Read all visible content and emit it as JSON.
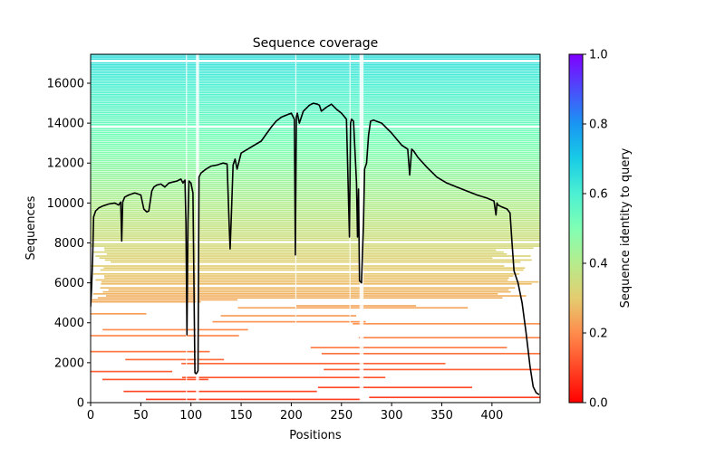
{
  "chart_data": {
    "type": "heatmap",
    "title": "Sequence coverage",
    "xlabel": "Positions",
    "ylabel": "Sequences",
    "xlim": [
      0,
      448
    ],
    "ylim": [
      0,
      17450
    ],
    "xticks": [
      0,
      50,
      100,
      150,
      200,
      250,
      300,
      350,
      400
    ],
    "xtick_labels": [
      "0",
      "50",
      "100",
      "150",
      "200",
      "250",
      "300",
      "350",
      "400"
    ],
    "yticks": [
      0,
      2000,
      4000,
      6000,
      8000,
      10000,
      12000,
      14000,
      16000
    ],
    "ytick_labels": [
      "0",
      "2000",
      "4000",
      "6000",
      "8000",
      "10000",
      "12000",
      "14000",
      "16000"
    ],
    "colorbar": {
      "label": "Sequence identity to query",
      "range": [
        0,
        1
      ],
      "ticks": [
        0.0,
        0.2,
        0.4,
        0.6,
        0.8,
        1.0
      ],
      "tick_labels": [
        "0.0",
        "0.2",
        "0.4",
        "0.6",
        "0.8",
        "1.0"
      ],
      "colormap": "rainbow_r"
    },
    "coverage_line": {
      "name": "coverage",
      "color": "#000000",
      "x": [
        0,
        1,
        2,
        3,
        5,
        8,
        12,
        18,
        24,
        28,
        30,
        31,
        32,
        34,
        38,
        44,
        50,
        53,
        56,
        58,
        61,
        63,
        66,
        70,
        74,
        78,
        82,
        86,
        90,
        92,
        94,
        95,
        96,
        97,
        98,
        100,
        102,
        104,
        105,
        106,
        107,
        108,
        110,
        115,
        120,
        126,
        132,
        136,
        138,
        139,
        140,
        142,
        144,
        146,
        150,
        160,
        170,
        180,
        185,
        190,
        195,
        200,
        203,
        204,
        205,
        206,
        208,
        212,
        218,
        222,
        226,
        228,
        230,
        235,
        240,
        245,
        250,
        255,
        258,
        259,
        260,
        262,
        265,
        266,
        267,
        268,
        270,
        272,
        273,
        275,
        277,
        279,
        282,
        290,
        300,
        310,
        316,
        318,
        320,
        322,
        326,
        335,
        345,
        355,
        365,
        375,
        385,
        395,
        402,
        404,
        405,
        406,
        410,
        415,
        418,
        420,
        422,
        424,
        426,
        430,
        434,
        438,
        441,
        444,
        447
      ],
      "y": [
        4800,
        5800,
        7200,
        9300,
        9600,
        9750,
        9850,
        9950,
        10000,
        9900,
        10050,
        8100,
        10050,
        10300,
        10400,
        10500,
        10400,
        9700,
        9550,
        9600,
        10600,
        10800,
        10900,
        10950,
        10800,
        11000,
        11050,
        11100,
        11200,
        11000,
        11150,
        9000,
        3400,
        9000,
        11100,
        11000,
        10500,
        1500,
        1450,
        1500,
        1600,
        11300,
        11500,
        11700,
        11850,
        11900,
        12000,
        11950,
        9000,
        7700,
        9000,
        11900,
        12200,
        11700,
        12500,
        12800,
        13100,
        13800,
        14100,
        14300,
        14400,
        14500,
        14200,
        7400,
        14300,
        14500,
        14000,
        14600,
        14900,
        15000,
        14950,
        14900,
        14600,
        14800,
        14950,
        14700,
        14500,
        14200,
        8300,
        14000,
        14200,
        14100,
        11000,
        8300,
        10700,
        6100,
        6000,
        9000,
        11700,
        12000,
        13400,
        14100,
        14150,
        14000,
        13500,
        12900,
        12700,
        11400,
        12700,
        12600,
        12300,
        11800,
        11300,
        11000,
        10800,
        10600,
        10400,
        10250,
        10100,
        9400,
        10000,
        9900,
        9800,
        9700,
        9500,
        8000,
        6600,
        6300,
        6000,
        5000,
        3500,
        1800,
        800,
        500,
        400
      ]
    },
    "alignment_density": "rows of aligned sequences colored by identity; top rows high identity (~0.6), bottom rows low identity (~0.1)"
  }
}
